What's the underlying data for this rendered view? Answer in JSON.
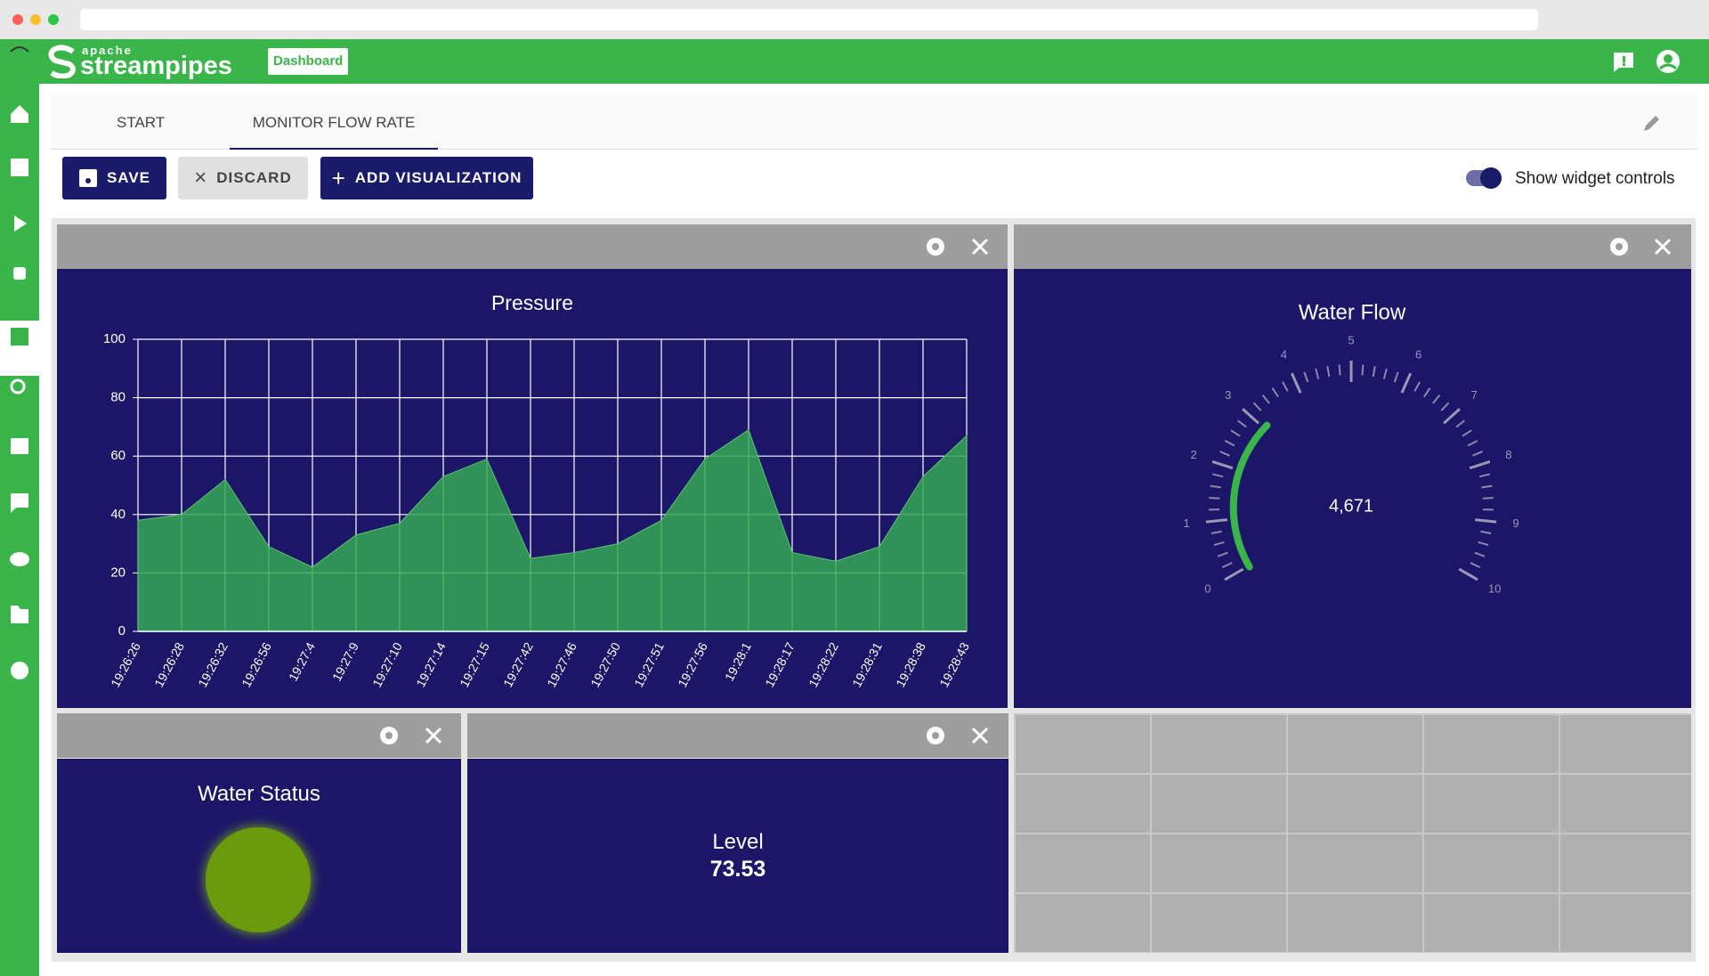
{
  "header": {
    "logo_small": "apache",
    "logo": "streampipes",
    "badge": "Dashboard"
  },
  "tabs": [
    "START",
    "MONITOR FLOW RATE"
  ],
  "toolbar": {
    "save": "SAVE",
    "discard": "DISCARD",
    "add": "ADD VISUALIZATION",
    "toggle_label": "Show widget controls"
  },
  "chart_data": {
    "type": "area",
    "title": "Pressure",
    "categories": [
      "19:26:26",
      "19:26:28",
      "19:26:32",
      "19:26:56",
      "19:27:4",
      "19:27:9",
      "19:27:10",
      "19:27:14",
      "19:27:15",
      "19:27:42",
      "19:27:46",
      "19:27:50",
      "19:27:51",
      "19:27:56",
      "19:28:1",
      "19:28:17",
      "19:28:22",
      "19:28:31",
      "19:28:38",
      "19:28:43"
    ],
    "values": [
      38,
      40,
      52,
      29,
      22,
      33,
      37,
      53,
      59,
      25,
      27,
      30,
      38,
      59,
      69,
      27,
      24,
      29,
      53,
      67
    ],
    "color": "#34a853",
    "ylim": [
      0,
      100
    ],
    "yticks": [
      0,
      20,
      40,
      60,
      80,
      100
    ],
    "grid": true
  },
  "water_flow": {
    "title": "Water Flow",
    "value": "4,671",
    "ticks": [
      0,
      1,
      2,
      3,
      4,
      5,
      6,
      7,
      8,
      9,
      10
    ]
  },
  "water_status": {
    "title": "Water Status"
  },
  "level": {
    "title": "Level",
    "value": 73.53
  }
}
